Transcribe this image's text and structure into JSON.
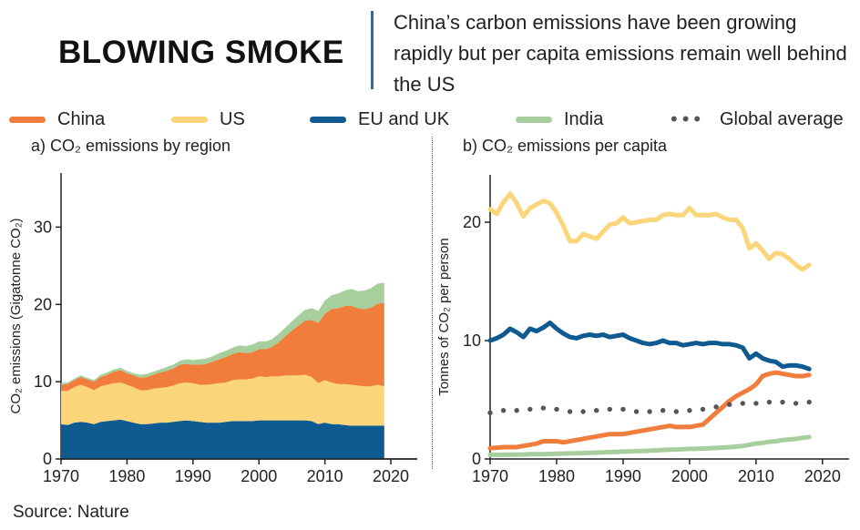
{
  "header": {
    "title": "BLOWING SMOKE",
    "subtitle": "China’s carbon emissions have been growing rapidly but per capita emissions remain well behind the US"
  },
  "legend": [
    {
      "label": "China",
      "color": "#f07d3b",
      "style": "line"
    },
    {
      "label": "US",
      "color": "#fbd57a",
      "style": "line"
    },
    {
      "label": "EU and UK",
      "color": "#0e5a91",
      "style": "line"
    },
    {
      "label": "India",
      "color": "#a7cf9d",
      "style": "line"
    },
    {
      "label": "Global average",
      "color": "#555555",
      "style": "dotted"
    }
  ],
  "source": "Source: Nature",
  "chart_data": [
    {
      "type": "area",
      "stacked": true,
      "title": "a) CO₂ emissions by region",
      "xlabel": "",
      "ylabel": "CO₂ emissions (Gigatonne CO₂)",
      "xlim": [
        1970,
        2024
      ],
      "ylim": [
        0,
        37
      ],
      "xticks": [
        1970,
        1980,
        1990,
        2000,
        2010,
        2020
      ],
      "yticks": [
        0,
        10,
        20,
        30
      ],
      "x": [
        1970,
        1971,
        1972,
        1973,
        1974,
        1975,
        1976,
        1977,
        1978,
        1979,
        1980,
        1981,
        1982,
        1983,
        1984,
        1985,
        1986,
        1987,
        1988,
        1989,
        1990,
        1991,
        1992,
        1993,
        1994,
        1995,
        1996,
        1997,
        1998,
        1999,
        2000,
        2001,
        2002,
        2003,
        2004,
        2005,
        2006,
        2007,
        2008,
        2009,
        2010,
        2011,
        2012,
        2013,
        2014,
        2015,
        2016,
        2017,
        2018,
        2019
      ],
      "series": [
        {
          "name": "EU and UK",
          "color": "#0e5a91",
          "values": [
            4.5,
            4.4,
            4.7,
            4.8,
            4.7,
            4.5,
            4.8,
            4.9,
            5.0,
            5.1,
            4.9,
            4.7,
            4.5,
            4.5,
            4.6,
            4.7,
            4.7,
            4.8,
            4.9,
            5.0,
            4.9,
            4.8,
            4.7,
            4.7,
            4.7,
            4.8,
            4.9,
            4.9,
            4.9,
            4.9,
            5.0,
            5.0,
            5.0,
            5.0,
            5.0,
            5.0,
            5.0,
            5.0,
            4.9,
            4.5,
            4.7,
            4.5,
            4.5,
            4.4,
            4.3,
            4.3,
            4.3,
            4.3,
            4.3,
            4.3
          ]
        },
        {
          "name": "US",
          "color": "#fbd57a",
          "values": [
            4.3,
            4.4,
            4.6,
            4.8,
            4.6,
            4.4,
            4.6,
            4.7,
            4.8,
            4.8,
            4.7,
            4.6,
            4.4,
            4.4,
            4.5,
            4.5,
            4.6,
            4.7,
            4.9,
            4.9,
            4.9,
            4.8,
            4.9,
            5.0,
            5.1,
            5.1,
            5.3,
            5.4,
            5.4,
            5.5,
            5.7,
            5.6,
            5.7,
            5.7,
            5.8,
            5.8,
            5.8,
            5.9,
            5.7,
            5.3,
            5.5,
            5.4,
            5.2,
            5.3,
            5.3,
            5.2,
            5.1,
            5.1,
            5.3,
            5.1
          ]
        },
        {
          "name": "China",
          "color": "#f07d3b",
          "values": [
            0.8,
            0.9,
            0.9,
            1.0,
            1.0,
            1.1,
            1.2,
            1.3,
            1.5,
            1.6,
            1.5,
            1.5,
            1.6,
            1.7,
            1.8,
            2.0,
            2.1,
            2.2,
            2.4,
            2.4,
            2.4,
            2.6,
            2.7,
            2.9,
            3.1,
            3.3,
            3.4,
            3.5,
            3.4,
            3.4,
            3.5,
            3.6,
            3.8,
            4.4,
            5.1,
            5.8,
            6.5,
            7.0,
            7.4,
            7.8,
            8.6,
            9.5,
            9.8,
            10.1,
            10.2,
            10.0,
            10.0,
            10.2,
            10.5,
            10.8
          ]
        },
        {
          "name": "India",
          "color": "#a7cf9d",
          "values": [
            0.2,
            0.2,
            0.2,
            0.2,
            0.2,
            0.2,
            0.3,
            0.3,
            0.3,
            0.3,
            0.3,
            0.3,
            0.4,
            0.4,
            0.4,
            0.4,
            0.5,
            0.5,
            0.5,
            0.6,
            0.6,
            0.7,
            0.7,
            0.7,
            0.8,
            0.8,
            0.8,
            0.9,
            0.9,
            1.0,
            1.0,
            1.0,
            1.0,
            1.1,
            1.1,
            1.2,
            1.3,
            1.4,
            1.5,
            1.6,
            1.7,
            1.8,
            1.9,
            2.0,
            2.2,
            2.2,
            2.4,
            2.5,
            2.6,
            2.6
          ]
        }
      ]
    },
    {
      "type": "line",
      "title": "b) CO₂ emissions per capita",
      "xlabel": "",
      "ylabel": "Tonnes of CO₂ per person",
      "xlim": [
        1970,
        2024
      ],
      "ylim": [
        0,
        24
      ],
      "xticks": [
        1970,
        1980,
        1990,
        2000,
        2010,
        2020
      ],
      "yticks": [
        0,
        10,
        20
      ],
      "x": [
        1970,
        1971,
        1972,
        1973,
        1974,
        1975,
        1976,
        1977,
        1978,
        1979,
        1980,
        1981,
        1982,
        1983,
        1984,
        1985,
        1986,
        1987,
        1988,
        1989,
        1990,
        1991,
        1992,
        1993,
        1994,
        1995,
        1996,
        1997,
        1998,
        1999,
        2000,
        2001,
        2002,
        2003,
        2004,
        2005,
        2006,
        2007,
        2008,
        2009,
        2010,
        2011,
        2012,
        2013,
        2014,
        2015,
        2016,
        2017,
        2018
      ],
      "series": [
        {
          "name": "US",
          "color": "#fbd57a",
          "style": "line",
          "values": [
            21.1,
            20.7,
            21.7,
            22.4,
            21.6,
            20.5,
            21.2,
            21.5,
            21.8,
            21.6,
            20.8,
            19.7,
            18.4,
            18.4,
            19.0,
            18.8,
            18.6,
            19.2,
            19.8,
            19.9,
            20.4,
            19.9,
            20.0,
            20.1,
            20.2,
            20.2,
            20.6,
            20.7,
            20.6,
            20.6,
            21.2,
            20.6,
            20.6,
            20.6,
            20.7,
            20.4,
            20.2,
            20.2,
            19.5,
            17.8,
            18.2,
            17.6,
            16.9,
            17.4,
            17.3,
            16.9,
            16.4,
            16.0,
            16.4
          ]
        },
        {
          "name": "EU and UK",
          "color": "#0e5a91",
          "style": "line",
          "values": [
            10.0,
            10.2,
            10.5,
            11.0,
            10.7,
            10.3,
            11.0,
            10.8,
            11.1,
            11.5,
            11.0,
            10.6,
            10.3,
            10.2,
            10.4,
            10.5,
            10.4,
            10.5,
            10.3,
            10.4,
            10.5,
            10.2,
            10.0,
            9.8,
            9.7,
            9.8,
            10.0,
            9.8,
            9.8,
            9.6,
            9.7,
            9.8,
            9.7,
            9.8,
            9.8,
            9.7,
            9.7,
            9.6,
            9.4,
            8.5,
            8.9,
            8.5,
            8.3,
            8.2,
            7.8,
            7.9,
            7.9,
            7.8,
            7.6
          ]
        },
        {
          "name": "China",
          "color": "#f07d3b",
          "style": "line",
          "values": [
            0.9,
            0.95,
            1.0,
            1.0,
            1.0,
            1.1,
            1.2,
            1.3,
            1.5,
            1.5,
            1.5,
            1.4,
            1.5,
            1.6,
            1.7,
            1.8,
            1.9,
            2.0,
            2.1,
            2.1,
            2.1,
            2.2,
            2.3,
            2.4,
            2.5,
            2.6,
            2.7,
            2.8,
            2.7,
            2.7,
            2.7,
            2.8,
            2.9,
            3.4,
            3.9,
            4.4,
            4.9,
            5.3,
            5.6,
            5.9,
            6.3,
            7.0,
            7.2,
            7.3,
            7.2,
            7.1,
            7.0,
            7.0,
            7.1
          ]
        },
        {
          "name": "India",
          "color": "#a7cf9d",
          "style": "line",
          "values": [
            0.35,
            0.35,
            0.35,
            0.36,
            0.37,
            0.38,
            0.4,
            0.4,
            0.4,
            0.42,
            0.44,
            0.46,
            0.47,
            0.48,
            0.5,
            0.52,
            0.54,
            0.56,
            0.58,
            0.6,
            0.62,
            0.64,
            0.66,
            0.68,
            0.7,
            0.73,
            0.76,
            0.79,
            0.8,
            0.82,
            0.85,
            0.86,
            0.88,
            0.9,
            0.93,
            0.96,
            1.0,
            1.05,
            1.1,
            1.2,
            1.3,
            1.35,
            1.45,
            1.5,
            1.6,
            1.65,
            1.7,
            1.78,
            1.85
          ]
        },
        {
          "name": "Global average",
          "color": "#555555",
          "style": "dotted",
          "values": [
            3.9,
            4.0,
            4.1,
            4.2,
            4.1,
            4.1,
            4.2,
            4.2,
            4.3,
            4.3,
            4.2,
            4.1,
            4.0,
            4.0,
            4.0,
            4.0,
            4.1,
            4.1,
            4.2,
            4.2,
            4.2,
            4.1,
            4.0,
            4.0,
            4.0,
            4.0,
            4.1,
            4.1,
            4.0,
            4.0,
            4.1,
            4.1,
            4.2,
            4.3,
            4.4,
            4.5,
            4.6,
            4.6,
            4.7,
            4.6,
            4.7,
            4.8,
            4.8,
            4.8,
            4.8,
            4.7,
            4.7,
            4.7,
            4.8
          ]
        }
      ]
    }
  ]
}
